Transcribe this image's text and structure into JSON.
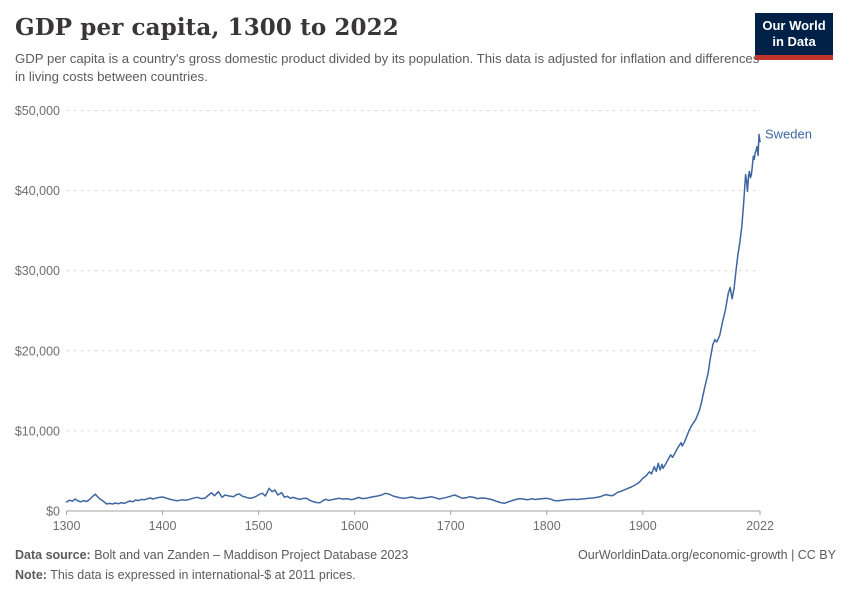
{
  "header": {
    "title": "GDP per capita, 1300 to 2022",
    "subtitle": "GDP per capita is a country's gross domestic product divided by its population. This data is adjusted for inflation and differences in living costs between countries.",
    "logo": {
      "line1": "Our World",
      "line2": "in Data",
      "bg_color": "#002147",
      "accent_color": "#c0362c"
    }
  },
  "chart_data": {
    "type": "line",
    "title": "GDP per capita, 1300 to 2022",
    "xlabel": "",
    "ylabel": "",
    "x_range": [
      1300,
      2022
    ],
    "y_range": [
      0,
      50000
    ],
    "grid": "horizontal-dashed",
    "legend_position": "entity-label-right-of-line",
    "x_ticks": [
      {
        "value": 1300,
        "label": "1300"
      },
      {
        "value": 1400,
        "label": "1400"
      },
      {
        "value": 1500,
        "label": "1500"
      },
      {
        "value": 1600,
        "label": "1600"
      },
      {
        "value": 1700,
        "label": "1700"
      },
      {
        "value": 1800,
        "label": "1800"
      },
      {
        "value": 1900,
        "label": "1900"
      },
      {
        "value": 2022,
        "label": "2022"
      }
    ],
    "y_ticks": [
      {
        "value": 0,
        "label": "$0"
      },
      {
        "value": 10000,
        "label": "$10,000"
      },
      {
        "value": 20000,
        "label": "$20,000"
      },
      {
        "value": 30000,
        "label": "$30,000"
      },
      {
        "value": 40000,
        "label": "$40,000"
      },
      {
        "value": 50000,
        "label": "$50,000"
      }
    ],
    "axis_color": "#a1a1a1",
    "gridline_color": "#dcdcdc",
    "tick_label_color": "#6e6e6e",
    "series": [
      {
        "name": "Sweden",
        "color": "#3e66a0",
        "points": [
          [
            1300,
            1120
          ],
          [
            1303,
            1350
          ],
          [
            1306,
            1220
          ],
          [
            1309,
            1500
          ],
          [
            1312,
            1260
          ],
          [
            1315,
            1150
          ],
          [
            1318,
            1300
          ],
          [
            1321,
            1180
          ],
          [
            1324,
            1450
          ],
          [
            1327,
            1800
          ],
          [
            1330,
            2100
          ],
          [
            1333,
            1700
          ],
          [
            1336,
            1400
          ],
          [
            1339,
            1150
          ],
          [
            1342,
            880
          ],
          [
            1345,
            950
          ],
          [
            1348,
            870
          ],
          [
            1351,
            1000
          ],
          [
            1354,
            900
          ],
          [
            1357,
            1050
          ],
          [
            1360,
            950
          ],
          [
            1363,
            1100
          ],
          [
            1366,
            1250
          ],
          [
            1369,
            1150
          ],
          [
            1372,
            1370
          ],
          [
            1375,
            1300
          ],
          [
            1378,
            1450
          ],
          [
            1381,
            1400
          ],
          [
            1384,
            1520
          ],
          [
            1387,
            1620
          ],
          [
            1390,
            1500
          ],
          [
            1393,
            1600
          ],
          [
            1396,
            1680
          ],
          [
            1400,
            1750
          ],
          [
            1404,
            1600
          ],
          [
            1408,
            1450
          ],
          [
            1412,
            1350
          ],
          [
            1416,
            1290
          ],
          [
            1420,
            1400
          ],
          [
            1424,
            1330
          ],
          [
            1428,
            1460
          ],
          [
            1432,
            1600
          ],
          [
            1436,
            1710
          ],
          [
            1440,
            1550
          ],
          [
            1444,
            1580
          ],
          [
            1448,
            2000
          ],
          [
            1451,
            2290
          ],
          [
            1454,
            1900
          ],
          [
            1458,
            2410
          ],
          [
            1462,
            1710
          ],
          [
            1465,
            2000
          ],
          [
            1468,
            1900
          ],
          [
            1471,
            1850
          ],
          [
            1474,
            1790
          ],
          [
            1477,
            2050
          ],
          [
            1480,
            2120
          ],
          [
            1483,
            1850
          ],
          [
            1486,
            1760
          ],
          [
            1489,
            1630
          ],
          [
            1492,
            1580
          ],
          [
            1495,
            1700
          ],
          [
            1498,
            1870
          ],
          [
            1501,
            2100
          ],
          [
            1504,
            2210
          ],
          [
            1507,
            1870
          ],
          [
            1511,
            2830
          ],
          [
            1514,
            2410
          ],
          [
            1517,
            2620
          ],
          [
            1520,
            2000
          ],
          [
            1524,
            2290
          ],
          [
            1527,
            1710
          ],
          [
            1530,
            1850
          ],
          [
            1533,
            1600
          ],
          [
            1536,
            1700
          ],
          [
            1540,
            1550
          ],
          [
            1543,
            1460
          ],
          [
            1546,
            1560
          ],
          [
            1550,
            1580
          ],
          [
            1553,
            1350
          ],
          [
            1556,
            1200
          ],
          [
            1560,
            1060
          ],
          [
            1564,
            1040
          ],
          [
            1567,
            1300
          ],
          [
            1570,
            1460
          ],
          [
            1573,
            1320
          ],
          [
            1576,
            1400
          ],
          [
            1580,
            1500
          ],
          [
            1584,
            1580
          ],
          [
            1588,
            1480
          ],
          [
            1592,
            1550
          ],
          [
            1596,
            1420
          ],
          [
            1600,
            1500
          ],
          [
            1604,
            1700
          ],
          [
            1608,
            1550
          ],
          [
            1612,
            1580
          ],
          [
            1616,
            1700
          ],
          [
            1620,
            1800
          ],
          [
            1624,
            1870
          ],
          [
            1628,
            2000
          ],
          [
            1632,
            2210
          ],
          [
            1636,
            2100
          ],
          [
            1640,
            1870
          ],
          [
            1644,
            1750
          ],
          [
            1648,
            1620
          ],
          [
            1652,
            1580
          ],
          [
            1656,
            1680
          ],
          [
            1660,
            1750
          ],
          [
            1664,
            1600
          ],
          [
            1668,
            1550
          ],
          [
            1672,
            1620
          ],
          [
            1676,
            1700
          ],
          [
            1680,
            1790
          ],
          [
            1684,
            1650
          ],
          [
            1688,
            1500
          ],
          [
            1692,
            1600
          ],
          [
            1696,
            1710
          ],
          [
            1700,
            1850
          ],
          [
            1704,
            2000
          ],
          [
            1708,
            1800
          ],
          [
            1712,
            1600
          ],
          [
            1716,
            1650
          ],
          [
            1720,
            1790
          ],
          [
            1724,
            1700
          ],
          [
            1728,
            1550
          ],
          [
            1732,
            1620
          ],
          [
            1736,
            1580
          ],
          [
            1740,
            1500
          ],
          [
            1744,
            1370
          ],
          [
            1748,
            1200
          ],
          [
            1752,
            1050
          ],
          [
            1756,
            960
          ],
          [
            1760,
            1150
          ],
          [
            1764,
            1300
          ],
          [
            1768,
            1450
          ],
          [
            1772,
            1550
          ],
          [
            1776,
            1480
          ],
          [
            1780,
            1400
          ],
          [
            1784,
            1520
          ],
          [
            1788,
            1430
          ],
          [
            1792,
            1500
          ],
          [
            1796,
            1550
          ],
          [
            1800,
            1580
          ],
          [
            1804,
            1480
          ],
          [
            1808,
            1300
          ],
          [
            1812,
            1280
          ],
          [
            1816,
            1330
          ],
          [
            1820,
            1400
          ],
          [
            1824,
            1430
          ],
          [
            1828,
            1460
          ],
          [
            1832,
            1440
          ],
          [
            1836,
            1500
          ],
          [
            1840,
            1540
          ],
          [
            1844,
            1590
          ],
          [
            1848,
            1620
          ],
          [
            1852,
            1700
          ],
          [
            1856,
            1800
          ],
          [
            1859,
            1950
          ],
          [
            1862,
            2050
          ],
          [
            1865,
            1950
          ],
          [
            1868,
            1900
          ],
          [
            1871,
            2100
          ],
          [
            1874,
            2350
          ],
          [
            1877,
            2450
          ],
          [
            1880,
            2600
          ],
          [
            1884,
            2800
          ],
          [
            1888,
            3000
          ],
          [
            1892,
            3250
          ],
          [
            1896,
            3550
          ],
          [
            1900,
            4100
          ],
          [
            1903,
            4350
          ],
          [
            1907,
            4900
          ],
          [
            1909,
            4620
          ],
          [
            1912,
            5530
          ],
          [
            1914,
            4950
          ],
          [
            1916,
            5950
          ],
          [
            1918,
            5120
          ],
          [
            1920,
            5830
          ],
          [
            1921,
            5330
          ],
          [
            1923,
            5700
          ],
          [
            1926,
            6370
          ],
          [
            1929,
            7000
          ],
          [
            1931,
            6700
          ],
          [
            1933,
            7100
          ],
          [
            1936,
            7830
          ],
          [
            1940,
            8530
          ],
          [
            1941,
            8120
          ],
          [
            1943,
            8500
          ],
          [
            1945,
            9080
          ],
          [
            1948,
            10000
          ],
          [
            1951,
            10700
          ],
          [
            1955,
            11400
          ],
          [
            1959,
            12600
          ],
          [
            1961,
            13500
          ],
          [
            1964,
            15200
          ],
          [
            1968,
            17200
          ],
          [
            1970,
            18900
          ],
          [
            1973,
            20800
          ],
          [
            1975,
            21400
          ],
          [
            1977,
            21100
          ],
          [
            1980,
            21900
          ],
          [
            1983,
            23600
          ],
          [
            1986,
            25100
          ],
          [
            1989,
            27200
          ],
          [
            1991,
            27900
          ],
          [
            1993,
            26500
          ],
          [
            1995,
            27800
          ],
          [
            1997,
            30000
          ],
          [
            1999,
            32000
          ],
          [
            2001,
            33500
          ],
          [
            2003,
            35500
          ],
          [
            2005,
            38500
          ],
          [
            2007,
            42000
          ],
          [
            2008,
            41200
          ],
          [
            2009,
            39900
          ],
          [
            2010,
            41800
          ],
          [
            2011,
            42400
          ],
          [
            2012,
            41600
          ],
          [
            2013,
            42000
          ],
          [
            2014,
            43000
          ],
          [
            2015,
            44300
          ],
          [
            2016,
            43900
          ],
          [
            2017,
            44700
          ],
          [
            2018,
            45100
          ],
          [
            2019,
            45500
          ],
          [
            2020,
            44400
          ],
          [
            2021,
            47000
          ],
          [
            2022,
            46100
          ]
        ]
      }
    ]
  },
  "footer": {
    "source_label": "Data source:",
    "source_text": " Bolt and van Zanden – Maddison Project Database 2023",
    "note_label": "Note:",
    "note_text": " This data is expressed in international-$ at 2011 prices.",
    "link_text": "OurWorldinData.org/economic-growth | CC BY"
  }
}
